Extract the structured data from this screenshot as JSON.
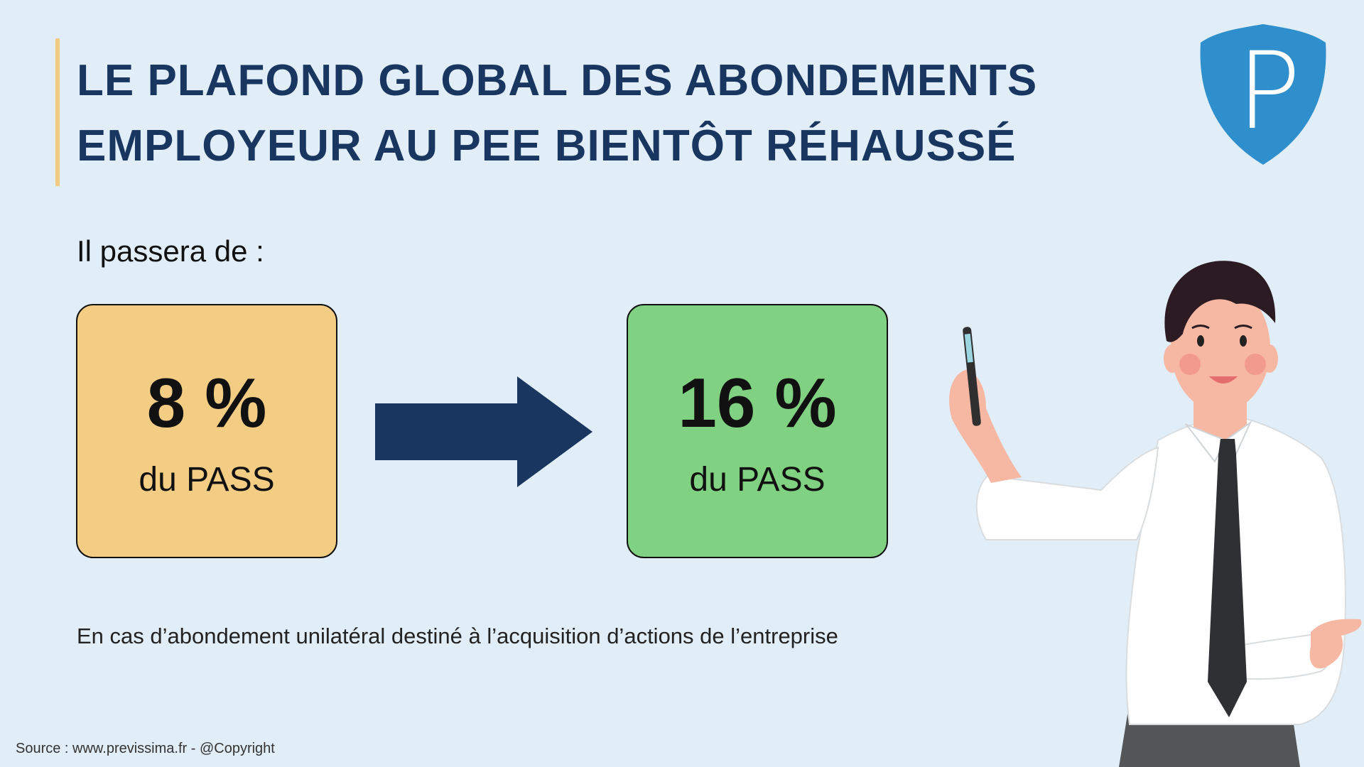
{
  "header": {
    "title_line1": "LE PLAFOND GLOBAL DES ABONDEMENTS",
    "title_line2": "EMPLOYEUR AU PEE BIENTÔT RÉHAUSSÉ"
  },
  "logo": {
    "letter": "P"
  },
  "intro": "Il passera de :",
  "comparison": {
    "from": {
      "value": "8 %",
      "unit": "du PASS"
    },
    "to": {
      "value": "16 %",
      "unit": "du PASS"
    }
  },
  "note": "En cas d’abondement unilatéral destiné à l’acquisition d’actions de l’entreprise",
  "footer": {
    "source": "Source : www.previssima.fr - @Copyright"
  },
  "colors": {
    "background": "#e1edf7",
    "title": "#18365f",
    "accent": "#f2cb83",
    "from_box": "#f4cd85",
    "to_box": "#80d181",
    "arrow": "#18365f",
    "logo": "#2e8fcc"
  },
  "icons": [
    "logo-shield-icon",
    "arrow-right-icon",
    "presenter-illustration"
  ]
}
